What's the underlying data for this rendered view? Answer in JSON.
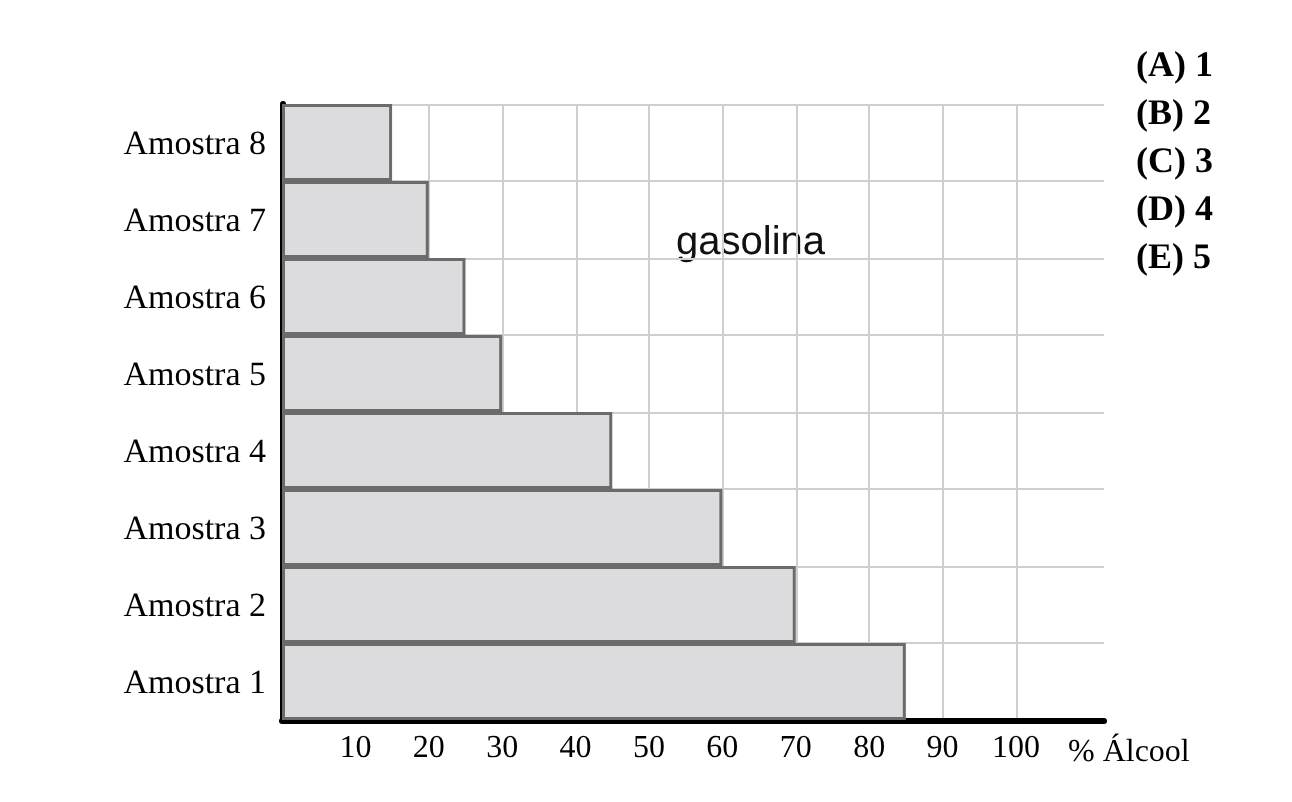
{
  "chart_data": {
    "type": "bar",
    "orientation": "horizontal",
    "categories": [
      "Amostra 8",
      "Amostra 7",
      "Amostra 6",
      "Amostra 5",
      "Amostra 4",
      "Amostra 3",
      "Amostra 2",
      "Amostra 1"
    ],
    "values": [
      15,
      20,
      25,
      30,
      45,
      60,
      70,
      85
    ],
    "color": "#dcdcdf",
    "xlabel": "% Álcool",
    "xlim": [
      0,
      112
    ],
    "xticks": [
      10,
      20,
      30,
      40,
      50,
      60,
      70,
      80,
      90,
      100
    ],
    "grid": true,
    "annotations": [
      "gasolina",
      "(A) 1",
      "(B) 2",
      "(C) 3",
      "(D) 4",
      "(E) 5"
    ]
  }
}
